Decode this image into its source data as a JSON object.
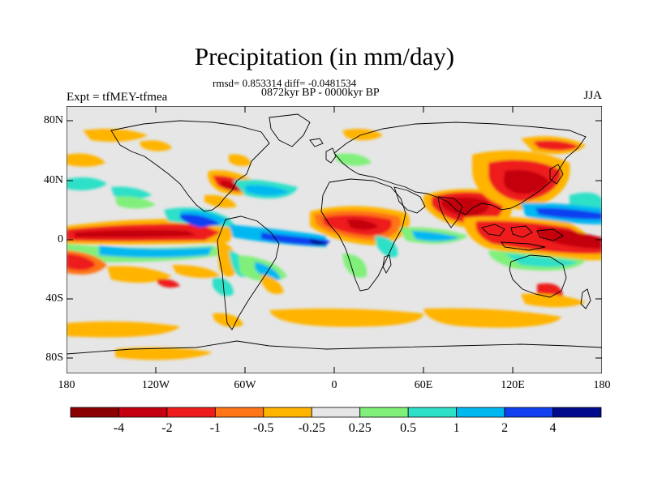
{
  "title": "Precipitation (in mm/day)",
  "stats": "rmsd= 0.853314 diff= -0.0481534",
  "period": "0872kyr BP - 0000kyr BP",
  "experiment": "Expt = tfMEY-tfmea",
  "season": "JJA",
  "lat_ticks": [
    "80N",
    "40N",
    "0",
    "40S",
    "80S"
  ],
  "lon_ticks": [
    "180",
    "120W",
    "60W",
    "0",
    "60E",
    "120E",
    "180"
  ],
  "colorbar": {
    "labels": [
      "-4",
      "-2",
      "-1",
      "-0.5",
      "-0.25",
      "0.25",
      "0.5",
      "1",
      "2",
      "4"
    ],
    "colors": [
      "#8b0000",
      "#c40010",
      "#ee1c1c",
      "#ff7518",
      "#ffb400",
      "#e6e6e6",
      "#80f07a",
      "#2ee0c8",
      "#00b8f0",
      "#1040f0",
      "#000a8c"
    ]
  }
}
